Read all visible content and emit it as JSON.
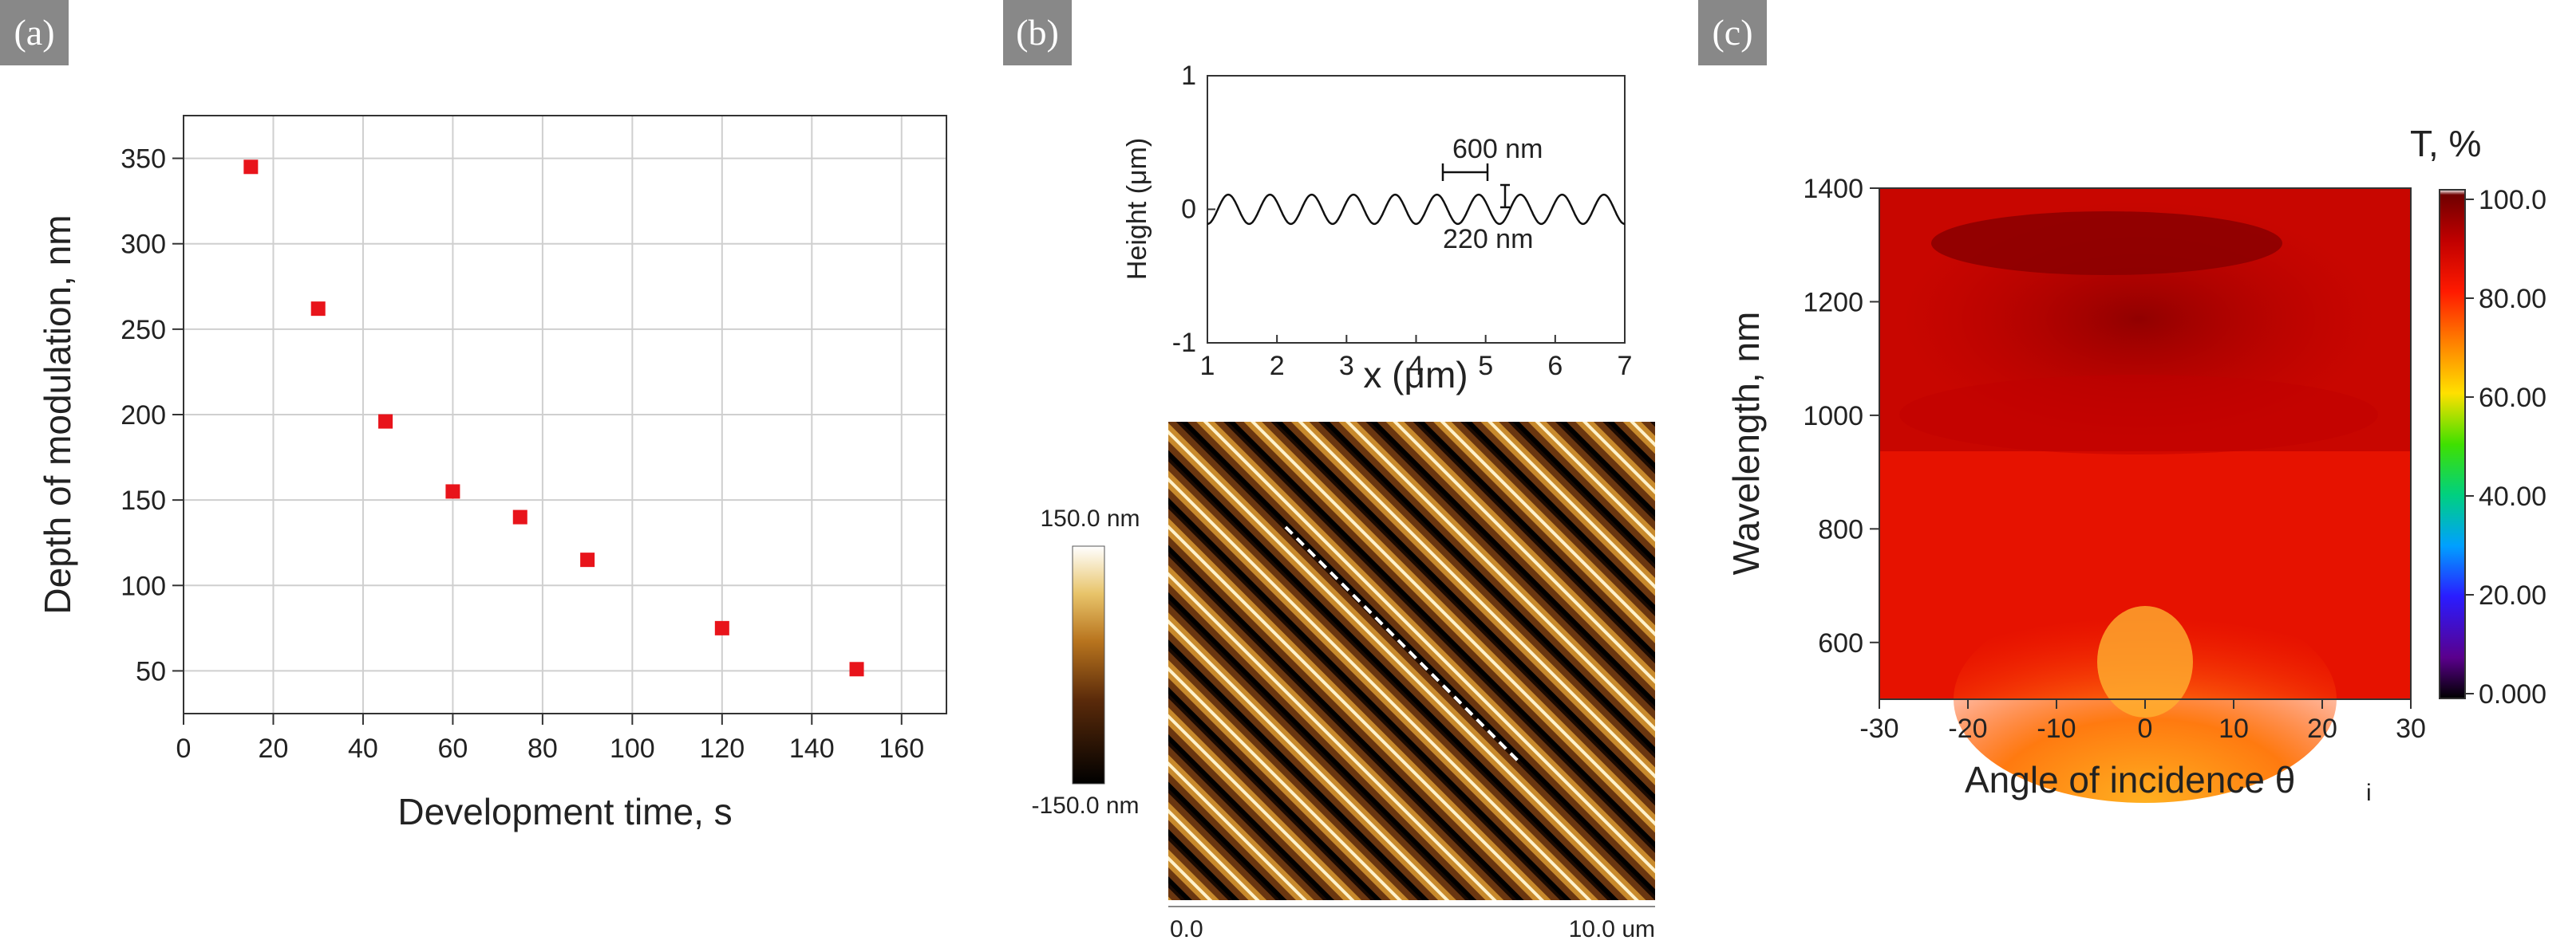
{
  "chart_data": [
    {
      "type": "scatter",
      "panel_label": "(a)",
      "xlabel": "Development time, s",
      "ylabel": "Depth of modulation, nm",
      "xlim": [
        0,
        170
      ],
      "ylim": [
        25,
        375
      ],
      "xticks": [
        "0",
        "20",
        "40",
        "60",
        "80",
        "100",
        "120",
        "140",
        "160"
      ],
      "yticks": [
        "50",
        "100",
        "150",
        "200",
        "250",
        "300",
        "350"
      ],
      "grid": true,
      "marker_color": "#e8141b",
      "x": [
        15,
        30,
        45,
        60,
        75,
        90,
        120,
        150
      ],
      "y": [
        345,
        262,
        196,
        155,
        140,
        115,
        75,
        51
      ]
    },
    {
      "type": "line",
      "panel_label": "(b)",
      "xlabel": "x (μm)",
      "ylabel": "Height (μm)",
      "xlim": [
        1,
        7
      ],
      "ylim": [
        -1,
        1
      ],
      "xticks": [
        "1",
        "2",
        "3",
        "4",
        "5",
        "6",
        "7"
      ],
      "yticks": [
        "-1",
        "0",
        "1"
      ],
      "period_nm": 600,
      "amplitude_nm": 220,
      "annotations": [
        "600 nm",
        "220 nm"
      ],
      "afm_image": {
        "colorbar_max": "150.0 nm",
        "colorbar_min": "-150.0 nm",
        "scale_start": "0.0",
        "scale_end": "10.0 um"
      }
    },
    {
      "type": "heatmap",
      "panel_label": "(c)",
      "xlabel": "Angle of incidence θ",
      "xlabel_sub": "i",
      "ylabel": "Wavelength, nm",
      "xlim": [
        -30,
        30
      ],
      "ylim": [
        500,
        1400
      ],
      "xticks": [
        "-30",
        "-20",
        "-10",
        "0",
        "10",
        "20",
        "30"
      ],
      "yticks": [
        "600",
        "800",
        "1000",
        "1200",
        "1400"
      ],
      "colorbar_title": "T, %",
      "colorbar_ticks": [
        "100.0",
        "80.00",
        "60.00",
        "40.00",
        "20.00",
        "0.000"
      ]
    }
  ]
}
